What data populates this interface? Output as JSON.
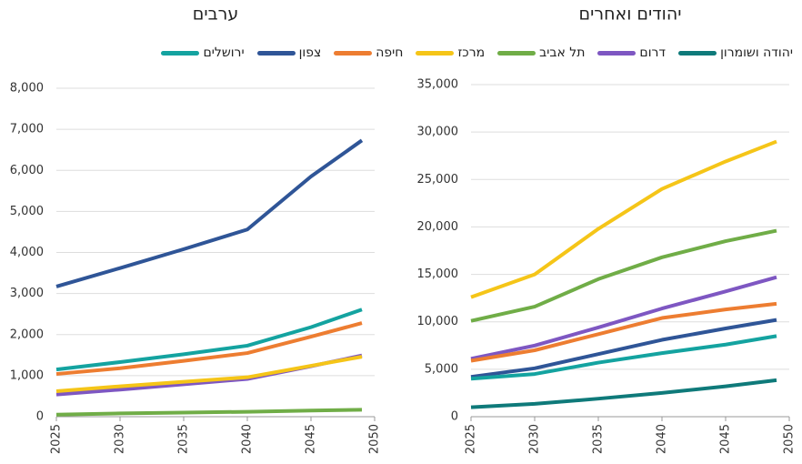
{
  "chart_data": [
    {
      "type": "line",
      "title": "ערבים",
      "x": [
        2025,
        2030,
        2035,
        2040,
        2045,
        2049
      ],
      "xlim": [
        2025,
        2050
      ],
      "xticks": [
        2025,
        2030,
        2035,
        2040,
        2045,
        2050
      ],
      "ylim": [
        0,
        8000
      ],
      "yticks": [
        0,
        {
          "value": 1000,
          "label": "1,000"
        },
        {
          "value": 2000,
          "label": "2,000"
        },
        {
          "value": 3000,
          "label": "3,000"
        },
        {
          "value": 4000,
          "label": "4,000"
        },
        {
          "value": 5000,
          "label": "5,000"
        },
        {
          "value": 6000,
          "label": "6,000"
        },
        {
          "value": 7000,
          "label": "7,000"
        },
        {
          "value": 8000,
          "label": "8,000"
        }
      ],
      "grid": true,
      "series": [
        {
          "name": "דרום",
          "color": "#7e57c2",
          "values": [
            540,
            660,
            790,
            920,
            1230,
            1490
          ]
        },
        {
          "name": "תל אביב",
          "color": "#70ad47",
          "values": [
            50,
            80,
            100,
            120,
            150,
            170
          ]
        },
        {
          "name": "מרכז",
          "color": "#f5c518",
          "values": [
            620,
            740,
            850,
            960,
            1240,
            1460
          ]
        },
        {
          "name": "חיפה",
          "color": "#ed7d31",
          "values": [
            1040,
            1180,
            1360,
            1550,
            1950,
            2280
          ]
        },
        {
          "name": "צפון",
          "color": "#2f5597",
          "values": [
            3170,
            3620,
            4080,
            4560,
            5850,
            6730
          ]
        },
        {
          "name": "ירושלים",
          "color": "#14a3a0",
          "values": [
            1150,
            1330,
            1520,
            1730,
            2180,
            2610
          ]
        }
      ]
    },
    {
      "type": "line",
      "title": "יהודים ואחרים",
      "x": [
        2025,
        2030,
        2035,
        2040,
        2045,
        2049
      ],
      "xlim": [
        2025,
        2050
      ],
      "xticks": [
        2025,
        2030,
        2035,
        2040,
        2045,
        2050
      ],
      "ylim": [
        0,
        35000
      ],
      "yticks": [
        0,
        {
          "value": 5000,
          "label": "5,000"
        },
        {
          "value": 10000,
          "label": "10,000"
        },
        {
          "value": 15000,
          "label": "15,000"
        },
        {
          "value": 20000,
          "label": "20,000"
        },
        {
          "value": 25000,
          "label": "25,000"
        },
        {
          "value": 30000,
          "label": "30,000"
        },
        {
          "value": 35000,
          "label": "35,000"
        }
      ],
      "grid": true,
      "series": [
        {
          "name": "יהודה ושומרון",
          "color": "#0f7a7a",
          "values": [
            1000,
            1350,
            1900,
            2500,
            3200,
            3850
          ]
        },
        {
          "name": "דרום",
          "color": "#7e57c2",
          "values": [
            6100,
            7500,
            9400,
            11400,
            13200,
            14700
          ]
        },
        {
          "name": "תל אביב",
          "color": "#70ad47",
          "values": [
            10100,
            11600,
            14500,
            16800,
            18500,
            19600
          ]
        },
        {
          "name": "מרכז",
          "color": "#f5c518",
          "values": [
            12600,
            15000,
            19800,
            24000,
            26900,
            29000
          ]
        },
        {
          "name": "חיפה",
          "color": "#ed7d31",
          "values": [
            5900,
            7000,
            8700,
            10400,
            11300,
            11900
          ]
        },
        {
          "name": "צפון",
          "color": "#2f5597",
          "values": [
            4200,
            5100,
            6600,
            8100,
            9300,
            10200
          ]
        },
        {
          "name": "ירושלים",
          "color": "#14a3a0",
          "values": [
            4000,
            4500,
            5700,
            6700,
            7600,
            8500
          ]
        }
      ]
    }
  ]
}
